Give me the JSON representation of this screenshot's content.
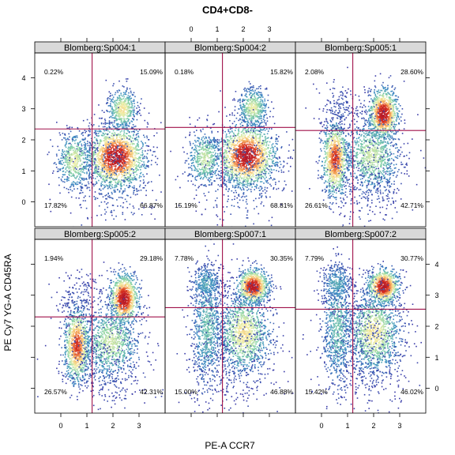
{
  "title": "CD4+CD8-",
  "xlabel": "PE-A CCR7",
  "ylabel": "PE Cy7 YG-A CD45RA",
  "colors": {
    "strip_bg": "#d9d9d9",
    "gate_line": "#a0114a",
    "density_scale": [
      "#3a3aa8",
      "#3e8fc4",
      "#7fd0a8",
      "#f2f0a8",
      "#f7b060",
      "#d7301f",
      "#b2182b"
    ]
  },
  "chart_data": {
    "type": "scatter",
    "subtype": "density-flow-cytometry-lattice",
    "title": "CD4+CD8-",
    "xlabel": "PE-A CCR7",
    "ylabel": "PE Cy7 YG-A CD45RA",
    "xlim": [
      -1,
      4
    ],
    "ylim": [
      -0.8,
      4.8
    ],
    "xticks": [
      0,
      1,
      2,
      3
    ],
    "yticks": [
      0,
      1,
      2,
      3,
      4
    ],
    "xtick_labels": [
      "0",
      "1",
      "2",
      "3"
    ],
    "ytick_labels": [
      "0",
      "1",
      "2",
      "3",
      "4"
    ],
    "panels": [
      {
        "strip": "Blomberg:Sp004:1",
        "gate": {
          "x": 1.2,
          "y": 2.35
        },
        "quadrants": {
          "top_left": "0.22%",
          "top_right": "15.09%",
          "bottom_left": "17.82%",
          "bottom_right": "66.87%"
        },
        "clusters": [
          {
            "x": 2.1,
            "y": 1.45,
            "sx": 0.55,
            "sy": 0.5,
            "n": 1700,
            "w": 1.0
          },
          {
            "x": 0.5,
            "y": 1.35,
            "sx": 0.32,
            "sy": 0.45,
            "n": 520,
            "w": 0.5
          },
          {
            "x": 2.35,
            "y": 3.0,
            "sx": 0.28,
            "sy": 0.32,
            "n": 480,
            "w": 0.55
          },
          {
            "x": 1.9,
            "y": 0.8,
            "sx": 0.9,
            "sy": 0.9,
            "n": 340,
            "w": 0.1
          }
        ]
      },
      {
        "strip": "Blomberg:Sp004:2",
        "gate": {
          "x": 1.2,
          "y": 2.4
        },
        "quadrants": {
          "top_left": "0.18%",
          "top_right": "15.82%",
          "bottom_left": "15.19%",
          "bottom_right": "68.81%"
        },
        "clusters": [
          {
            "x": 2.1,
            "y": 1.5,
            "sx": 0.55,
            "sy": 0.5,
            "n": 1700,
            "w": 1.0
          },
          {
            "x": 0.5,
            "y": 1.4,
            "sx": 0.32,
            "sy": 0.45,
            "n": 500,
            "w": 0.45
          },
          {
            "x": 2.35,
            "y": 3.05,
            "sx": 0.28,
            "sy": 0.32,
            "n": 480,
            "w": 0.5
          },
          {
            "x": 1.9,
            "y": 0.85,
            "sx": 0.9,
            "sy": 0.9,
            "n": 340,
            "w": 0.1
          }
        ]
      },
      {
        "strip": "Blomberg:Sp005:1",
        "gate": {
          "x": 1.2,
          "y": 2.3
        },
        "quadrants": {
          "top_left": "2.08%",
          "top_right": "28.60%",
          "bottom_left": "26.61%",
          "bottom_right": "42.71%"
        },
        "clusters": [
          {
            "x": 2.35,
            "y": 2.85,
            "sx": 0.28,
            "sy": 0.4,
            "n": 1000,
            "w": 1.0
          },
          {
            "x": 0.5,
            "y": 1.4,
            "sx": 0.25,
            "sy": 0.6,
            "n": 1000,
            "w": 0.85
          },
          {
            "x": 1.9,
            "y": 1.5,
            "sx": 0.55,
            "sy": 0.6,
            "n": 900,
            "w": 0.45
          },
          {
            "x": 0.7,
            "y": 3.0,
            "sx": 0.45,
            "sy": 0.45,
            "n": 180,
            "w": 0.05
          },
          {
            "x": 1.7,
            "y": 0.6,
            "sx": 0.9,
            "sy": 0.8,
            "n": 300,
            "w": 0.05
          }
        ]
      },
      {
        "strip": "Blomberg:Sp005:2",
        "gate": {
          "x": 1.2,
          "y": 2.3
        },
        "quadrants": {
          "top_left": "1.94%",
          "top_right": "29.18%",
          "bottom_left": "26.57%",
          "bottom_right": "42.31%"
        },
        "clusters": [
          {
            "x": 2.4,
            "y": 2.9,
            "sx": 0.28,
            "sy": 0.4,
            "n": 1000,
            "w": 1.0
          },
          {
            "x": 0.6,
            "y": 1.4,
            "sx": 0.25,
            "sy": 0.6,
            "n": 1000,
            "w": 0.85
          },
          {
            "x": 1.9,
            "y": 1.5,
            "sx": 0.55,
            "sy": 0.6,
            "n": 900,
            "w": 0.45
          },
          {
            "x": 0.75,
            "y": 2.95,
            "sx": 0.45,
            "sy": 0.45,
            "n": 180,
            "w": 0.05
          },
          {
            "x": 1.7,
            "y": 0.6,
            "sx": 0.9,
            "sy": 0.8,
            "n": 300,
            "w": 0.05
          }
        ]
      },
      {
        "strip": "Blomberg:Sp007:1",
        "gate": {
          "x": 1.2,
          "y": 2.6
        },
        "quadrants": {
          "top_left": "7.78%",
          "top_right": "30.35%",
          "bottom_left": "15.00%",
          "bottom_right": "46.88%"
        },
        "clusters": [
          {
            "x": 2.35,
            "y": 3.3,
            "sx": 0.3,
            "sy": 0.28,
            "n": 900,
            "w": 1.0
          },
          {
            "x": 2.0,
            "y": 1.8,
            "sx": 0.5,
            "sy": 0.65,
            "n": 1200,
            "w": 0.55
          },
          {
            "x": 0.6,
            "y": 2.0,
            "sx": 0.3,
            "sy": 1.0,
            "n": 800,
            "w": 0.3
          },
          {
            "x": 0.55,
            "y": 3.4,
            "sx": 0.3,
            "sy": 0.3,
            "n": 280,
            "w": 0.25
          },
          {
            "x": 1.7,
            "y": 1.2,
            "sx": 0.9,
            "sy": 1.0,
            "n": 400,
            "w": 0.05
          }
        ]
      },
      {
        "strip": "Blomberg:Sp007:2",
        "gate": {
          "x": 1.2,
          "y": 2.55
        },
        "quadrants": {
          "top_left": "7.79%",
          "top_right": "30.77%",
          "bottom_left": "15.42%",
          "bottom_right": "46.02%"
        },
        "clusters": [
          {
            "x": 2.35,
            "y": 3.3,
            "sx": 0.3,
            "sy": 0.28,
            "n": 900,
            "w": 1.0
          },
          {
            "x": 2.0,
            "y": 1.8,
            "sx": 0.5,
            "sy": 0.65,
            "n": 1200,
            "w": 0.55
          },
          {
            "x": 0.6,
            "y": 2.0,
            "sx": 0.3,
            "sy": 1.0,
            "n": 800,
            "w": 0.3
          },
          {
            "x": 0.55,
            "y": 3.4,
            "sx": 0.3,
            "sy": 0.3,
            "n": 280,
            "w": 0.25
          },
          {
            "x": 1.7,
            "y": 1.2,
            "sx": 0.9,
            "sy": 1.0,
            "n": 400,
            "w": 0.05
          }
        ]
      }
    ]
  }
}
